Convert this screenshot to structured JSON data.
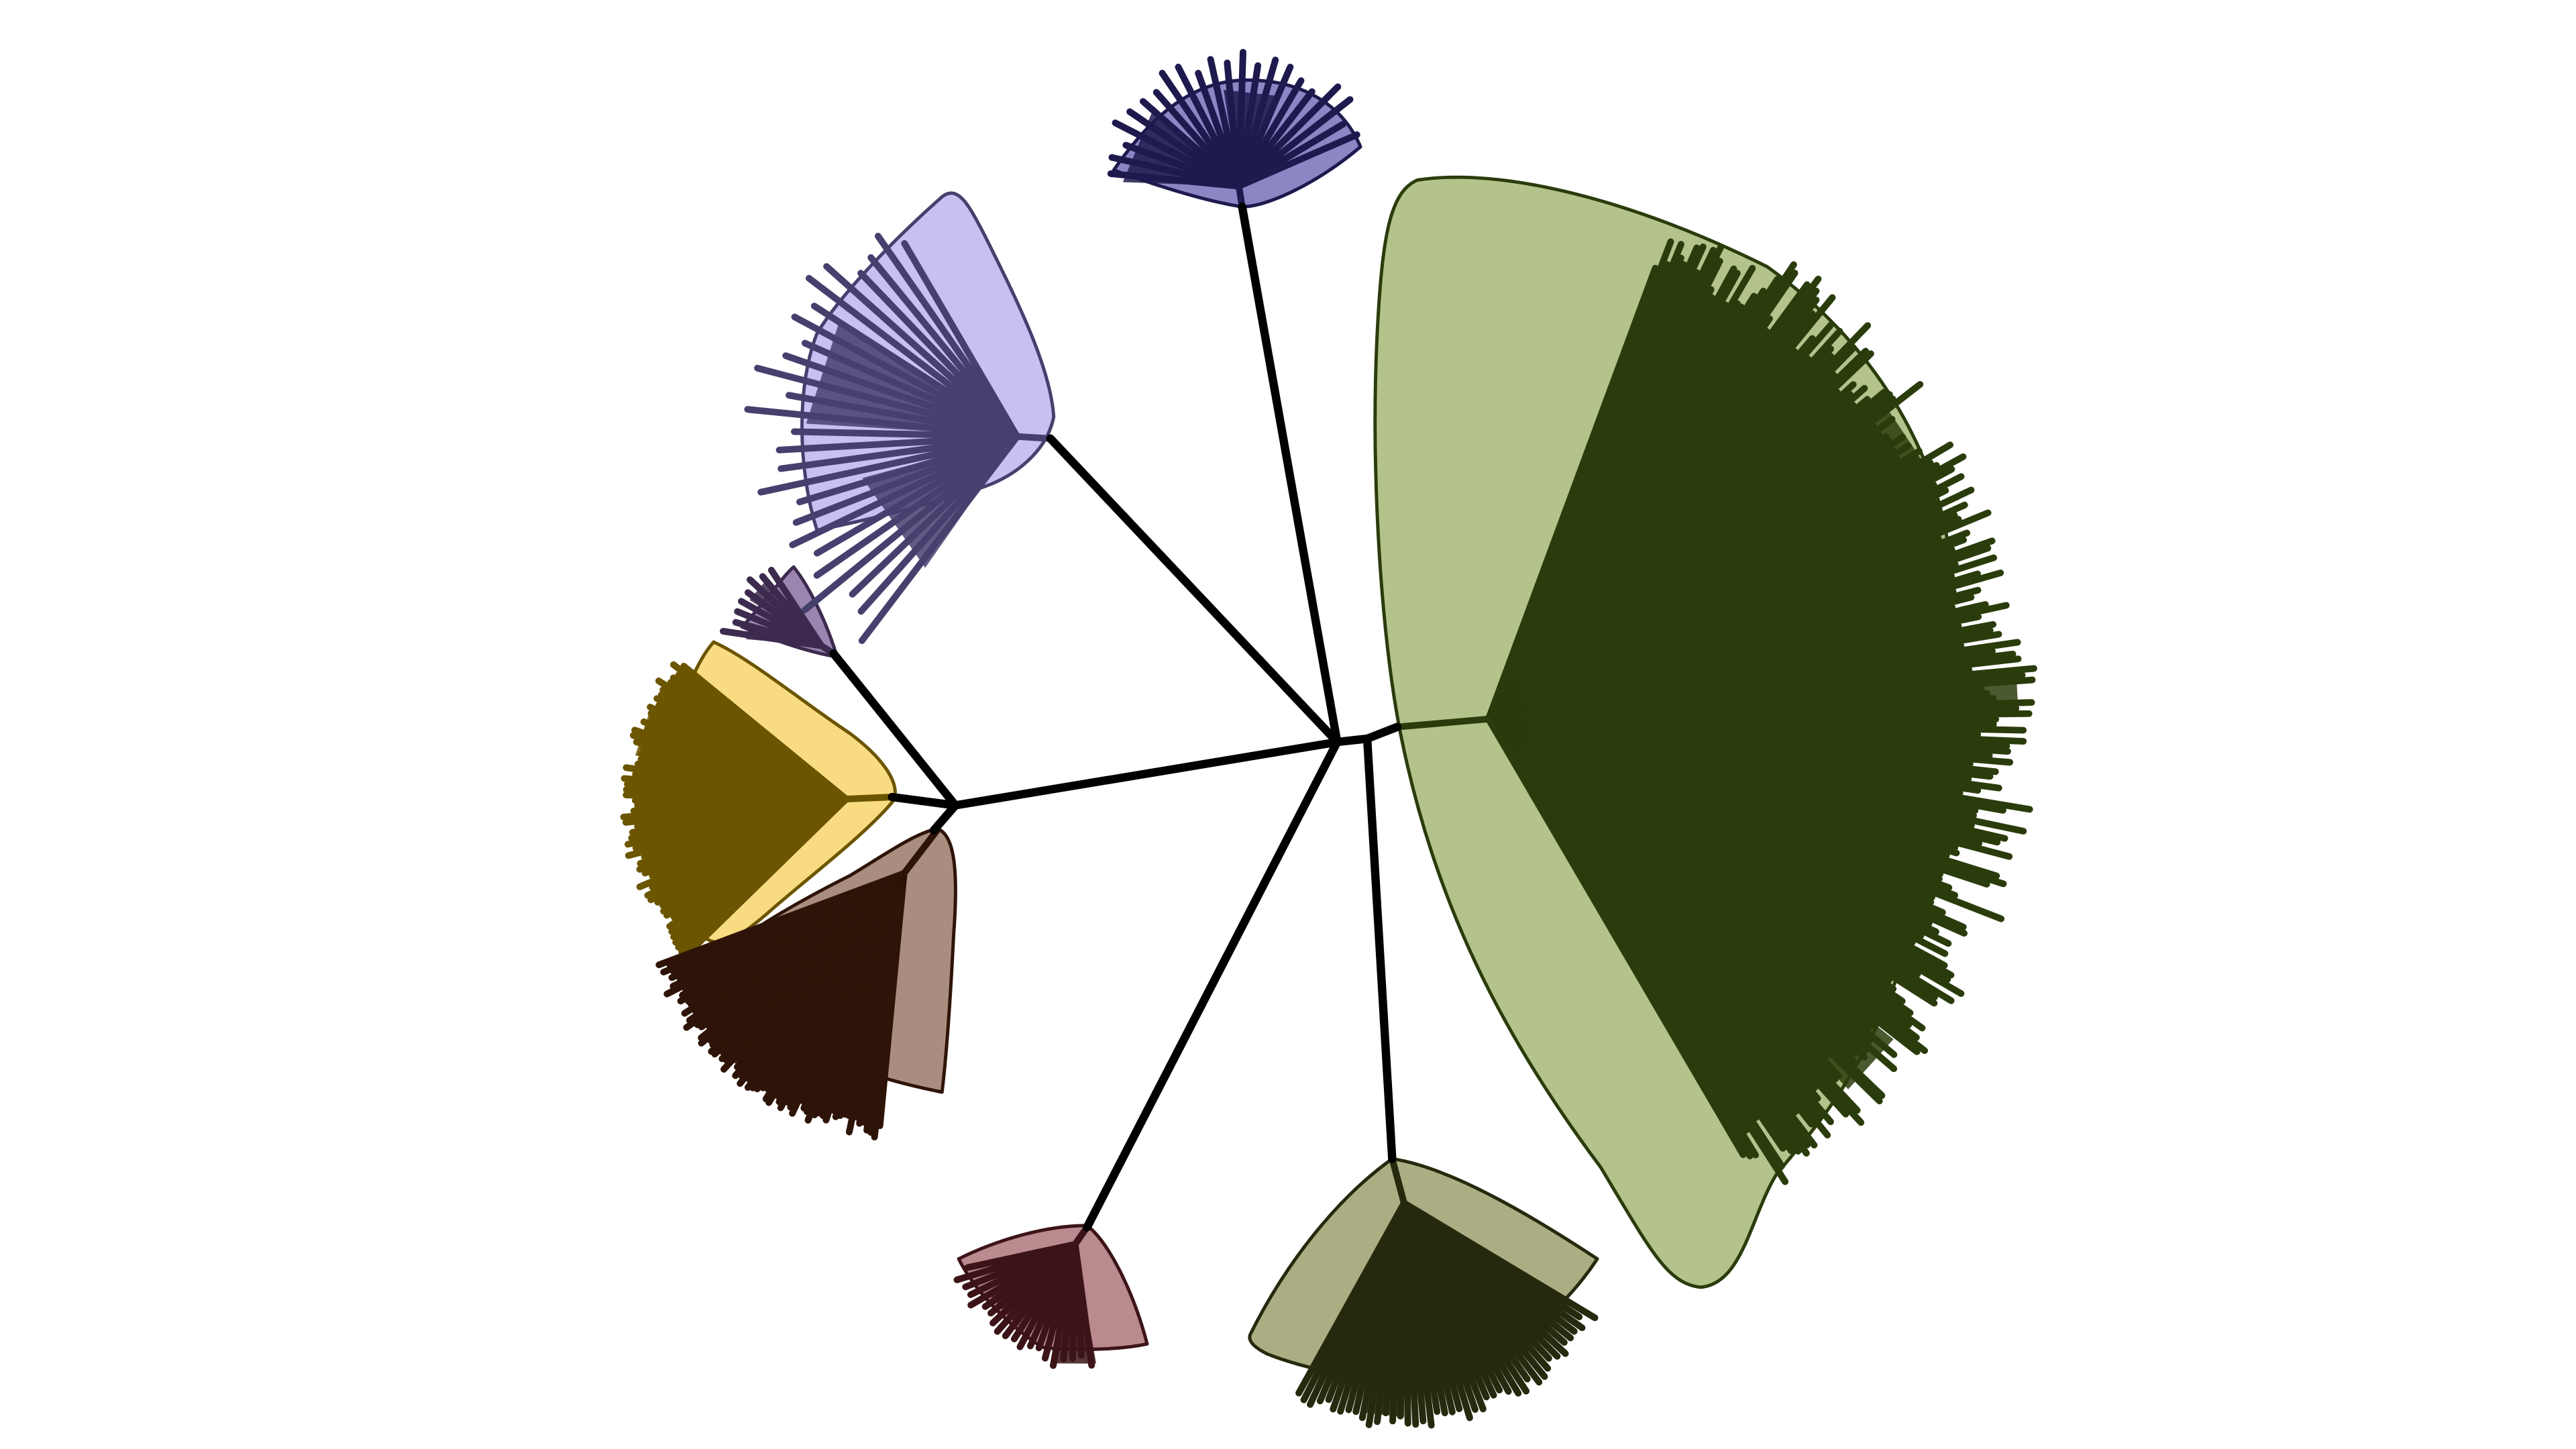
{
  "figure": {
    "type": "unrooted-phylogenetic-tree",
    "background_color": "#ffffff",
    "branch_color": "#000000"
  },
  "clades": [
    {
      "id": "clade-blue-top",
      "fill": "#8b86c4",
      "line": "#1e1a4e",
      "leaves": 22
    },
    {
      "id": "clade-lavender",
      "fill": "#c6c1f1",
      "line": "#46406e",
      "leaves": 26
    },
    {
      "id": "clade-purple-small",
      "fill": "#9a84b0",
      "line": "#3c2b4e",
      "leaves": 8
    },
    {
      "id": "clade-yellow",
      "fill": "#f9dc82",
      "line": "#6b5500",
      "leaves": 60
    },
    {
      "id": "clade-brown",
      "fill": "#a98d7e",
      "line": "#2e1408",
      "leaves": 70
    },
    {
      "id": "clade-rose",
      "fill": "#b98a8e",
      "line": "#3c1418",
      "leaves": 20
    },
    {
      "id": "clade-olive",
      "fill": "#aaae82",
      "line": "#26290d",
      "leaves": 45
    },
    {
      "id": "clade-green-large",
      "fill": "#b3c38b",
      "line": "#2b3c0c",
      "leaves": 220
    }
  ]
}
